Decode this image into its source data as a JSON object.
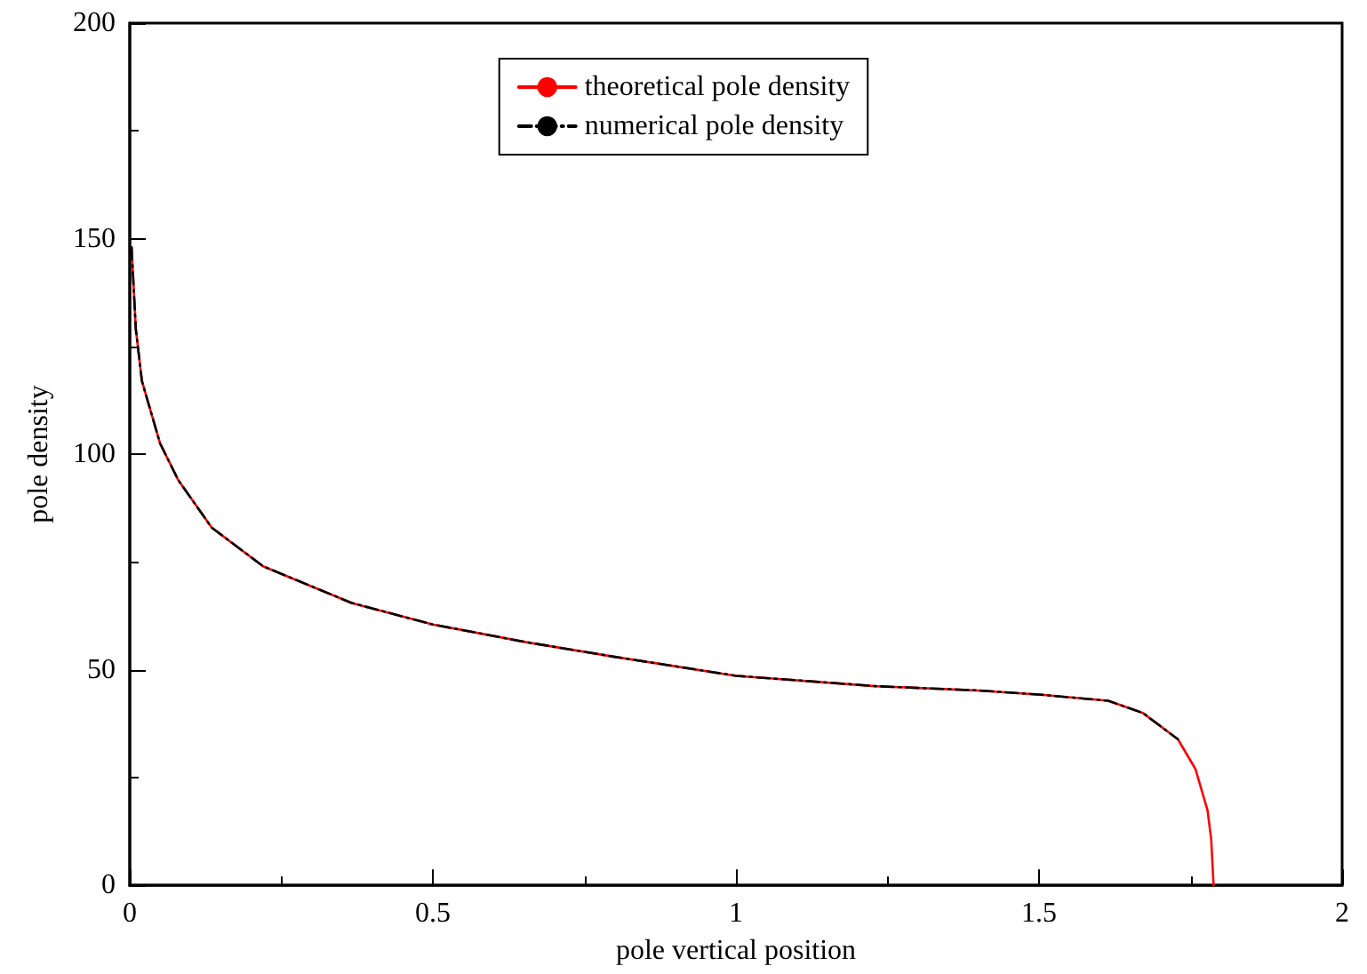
{
  "chart_data": {
    "type": "line",
    "xlabel": "pole vertical position",
    "ylabel": "pole density",
    "xlim": [
      0,
      2
    ],
    "xticks": [
      0,
      0.5,
      1,
      1.5,
      2
    ],
    "ylim": [
      0,
      200
    ],
    "yticks": [
      0,
      50,
      100,
      150,
      200
    ],
    "grid": false,
    "legend": "top",
    "marker": "none",
    "series": [
      {
        "name": "theoretical pole density",
        "color": "#ff0000",
        "line_style": "solid",
        "x": [
          0.003,
          0.01,
          0.02,
          0.05,
          0.08,
          0.135,
          0.22,
          0.366,
          0.5,
          0.654,
          0.8,
          1.0,
          1.23,
          1.4,
          1.504,
          1.614,
          1.671,
          1.729,
          1.758,
          1.778,
          1.784,
          1.788
        ],
        "values": [
          148,
          129,
          117,
          102.5,
          94,
          83,
          74,
          65.5,
          60.5,
          56.4,
          53,
          48.6,
          46.2,
          45.2,
          44.2,
          42.8,
          40,
          33.9,
          27,
          17.4,
          10.7,
          0
        ]
      },
      {
        "name": "numerical pole density",
        "color": "#000000",
        "line_style": "dashed",
        "x": [
          0.003,
          0.01,
          0.02,
          0.05,
          0.08,
          0.135,
          0.22,
          0.366,
          0.5,
          0.654,
          0.8,
          1.0,
          1.23,
          1.4,
          1.504,
          1.614,
          1.671,
          1.729
        ],
        "values": [
          148,
          129,
          117,
          102.5,
          94,
          83,
          74,
          65.5,
          60.5,
          56.4,
          53,
          48.6,
          46.2,
          45.2,
          44.2,
          42.8,
          40,
          33.9
        ]
      }
    ]
  }
}
